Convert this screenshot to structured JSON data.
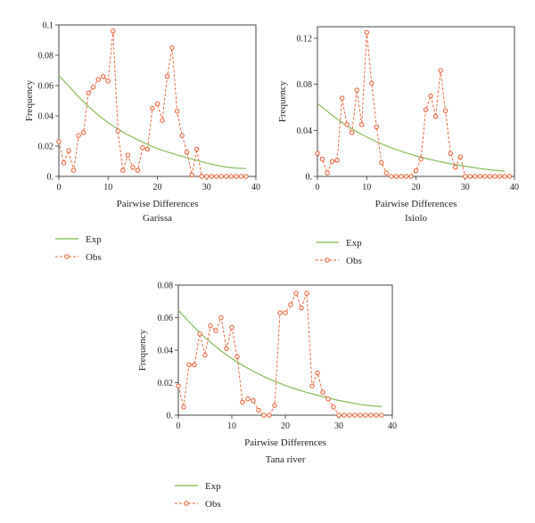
{
  "figure": {
    "exp_color": "#7ab648",
    "obs_color": "#e8582a"
  },
  "chart_data": [
    {
      "type": "line",
      "panel": "Garissa",
      "xlabel": "Pairwise Differences",
      "ylabel": "Frequency",
      "xlim": [
        0,
        40
      ],
      "ylim": [
        0,
        0.1
      ],
      "x_ticks": [
        0,
        10,
        20,
        30,
        40
      ],
      "y_ticks": [
        0,
        0.02,
        0.04,
        0.06,
        0.08,
        0.1
      ],
      "y_tick_labels": [
        "0.",
        "0.02",
        "0.04",
        "0.06",
        "0.08",
        "0.1"
      ],
      "legend": [
        "Exp",
        "Obs"
      ],
      "series": [
        {
          "name": "Exp",
          "style": "solid",
          "x": [
            0,
            2,
            4,
            6,
            8,
            10,
            12,
            14,
            16,
            18,
            20,
            22,
            24,
            26,
            28,
            30,
            32,
            34,
            36,
            38
          ],
          "values": [
            0.0665,
            0.0599,
            0.0525,
            0.0462,
            0.0405,
            0.0355,
            0.0312,
            0.0275,
            0.0242,
            0.0211,
            0.0185,
            0.0162,
            0.0142,
            0.0124,
            0.0106,
            0.0088,
            0.0073,
            0.0062,
            0.0055,
            0.0052
          ]
        },
        {
          "name": "Obs",
          "style": "dashed",
          "x": [
            0,
            1,
            2,
            3,
            4,
            5,
            6,
            7,
            8,
            9,
            10,
            11,
            12,
            13,
            14,
            15,
            16,
            17,
            18,
            19,
            20,
            21,
            22,
            23,
            24,
            25,
            26,
            27,
            28,
            29,
            30,
            31,
            32,
            33,
            34,
            35,
            36,
            37,
            38
          ],
          "values": [
            0.023,
            0.009,
            0.017,
            0.004,
            0.027,
            0.029,
            0.055,
            0.059,
            0.064,
            0.066,
            0.063,
            0.096,
            0.03,
            0.004,
            0.014,
            0.006,
            0.004,
            0.019,
            0.018,
            0.045,
            0.048,
            0.037,
            0.066,
            0.085,
            0.043,
            0.027,
            0.016,
            0.001,
            0.018,
            0.0,
            0.0,
            0.0,
            0.0,
            0.0,
            0.0,
            0.0,
            0.0,
            0.0,
            0.0
          ]
        }
      ]
    },
    {
      "type": "line",
      "panel": "Isiolo",
      "xlabel": "Pairwise Differences",
      "ylabel": "Frequency",
      "xlim": [
        0,
        40
      ],
      "ylim": [
        0,
        0.13
      ],
      "x_ticks": [
        0,
        10,
        20,
        30,
        40
      ],
      "y_ticks": [
        0,
        0.04,
        0.08,
        0.12
      ],
      "y_tick_labels": [
        "0.",
        "0.04",
        "0.08",
        "0.12"
      ],
      "legend": [
        "Exp",
        "Obs"
      ],
      "series": [
        {
          "name": "Exp",
          "style": "solid",
          "x": [
            0,
            2,
            4,
            6,
            8,
            10,
            12,
            14,
            16,
            18,
            20,
            22,
            24,
            26,
            28,
            30,
            32,
            34,
            36,
            38
          ],
          "values": [
            0.0635,
            0.0565,
            0.0498,
            0.044,
            0.0388,
            0.0342,
            0.0301,
            0.0265,
            0.0233,
            0.0204,
            0.0179,
            0.0156,
            0.0136,
            0.0118,
            0.0102,
            0.0088,
            0.0075,
            0.0063,
            0.0053,
            0.0045
          ]
        },
        {
          "name": "Obs",
          "style": "dashed",
          "x": [
            0,
            1,
            2,
            3,
            4,
            5,
            6,
            7,
            8,
            9,
            10,
            11,
            12,
            13,
            14,
            15,
            16,
            17,
            18,
            19,
            20,
            21,
            22,
            23,
            24,
            25,
            26,
            27,
            28,
            29,
            30,
            31,
            32,
            33,
            34,
            35,
            36,
            37,
            38,
            39
          ],
          "values": [
            0.02,
            0.015,
            0.003,
            0.013,
            0.014,
            0.068,
            0.045,
            0.038,
            0.075,
            0.045,
            0.125,
            0.081,
            0.043,
            0.012,
            0.003,
            0.0,
            0.0,
            0.0,
            0.0,
            0.0,
            0.005,
            0.015,
            0.058,
            0.07,
            0.052,
            0.092,
            0.057,
            0.02,
            0.008,
            0.017,
            0.0,
            0.0,
            0.0,
            0.0,
            0.0,
            0.0,
            0.0,
            0.0,
            0.0,
            0.0
          ]
        }
      ]
    },
    {
      "type": "line",
      "panel": "Tana river",
      "xlabel": "Pairwise Differences",
      "ylabel": "Frequency",
      "xlim": [
        0,
        40
      ],
      "ylim": [
        0,
        0.08
      ],
      "x_ticks": [
        0,
        10,
        20,
        30,
        40
      ],
      "y_ticks": [
        0,
        0.02,
        0.04,
        0.06,
        0.08
      ],
      "y_tick_labels": [
        "0.",
        "0.02",
        "0.04",
        "0.06",
        "0.08"
      ],
      "legend": [
        "Exp",
        "Obs"
      ],
      "series": [
        {
          "name": "Exp",
          "style": "solid",
          "x": [
            0,
            2,
            4,
            6,
            8,
            10,
            12,
            14,
            16,
            18,
            20,
            22,
            24,
            26,
            28,
            30,
            32,
            34,
            36,
            38
          ],
          "values": [
            0.0645,
            0.0575,
            0.0508,
            0.0448,
            0.0395,
            0.0348,
            0.0307,
            0.027,
            0.0237,
            0.0208,
            0.0183,
            0.016,
            0.014,
            0.0122,
            0.0105,
            0.0091,
            0.0078,
            0.0066,
            0.0058,
            0.0053
          ]
        },
        {
          "name": "Obs",
          "style": "dashed",
          "x": [
            0,
            1,
            2,
            3,
            4,
            5,
            6,
            7,
            8,
            9,
            10,
            11,
            12,
            13,
            14,
            15,
            16,
            17,
            18,
            19,
            20,
            21,
            22,
            23,
            24,
            25,
            26,
            27,
            28,
            29,
            30,
            31,
            32,
            33,
            34,
            35,
            36,
            37,
            38
          ],
          "values": [
            0.018,
            0.005,
            0.031,
            0.031,
            0.05,
            0.037,
            0.055,
            0.052,
            0.06,
            0.041,
            0.054,
            0.036,
            0.008,
            0.01,
            0.009,
            0.003,
            0.0,
            0.0,
            0.006,
            0.063,
            0.063,
            0.068,
            0.075,
            0.066,
            0.075,
            0.018,
            0.026,
            0.014,
            0.01,
            0.005,
            0.0,
            0.0,
            0.0,
            0.0,
            0.0,
            0.0,
            0.0,
            0.0,
            0.0
          ]
        }
      ]
    }
  ]
}
